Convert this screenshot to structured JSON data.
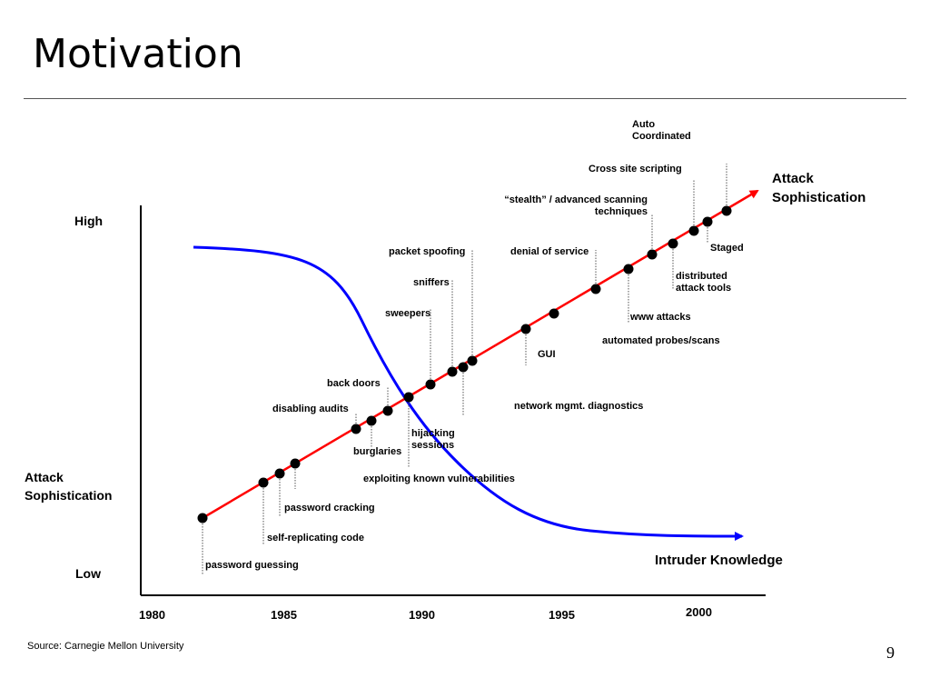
{
  "slide": {
    "title": "Motivation",
    "source": "Source: Carnegie Mellon University",
    "page_number": "9"
  },
  "axis": {
    "high": "High",
    "low": "Low",
    "y_title": [
      "Attack",
      "Sophistication"
    ],
    "years": [
      "1980",
      "1985",
      "1990",
      "1995",
      "2000"
    ]
  },
  "series": {
    "attack": {
      "label": [
        "Attack",
        "Sophistication"
      ],
      "color": "#ff0000"
    },
    "knowledge": {
      "label": "Intruder Knowledge",
      "color": "#0000ff"
    }
  },
  "events": [
    {
      "id": "password-guessing",
      "label": [
        "password guessing"
      ]
    },
    {
      "id": "self-replicating-code",
      "label": [
        "self-replicating code"
      ]
    },
    {
      "id": "password-cracking",
      "label": [
        "password cracking"
      ]
    },
    {
      "id": "exploiting-known-vulnerabilities",
      "label": [
        "exploiting known vulnerabilities"
      ]
    },
    {
      "id": "disabling-audits",
      "label": [
        "disabling audits"
      ]
    },
    {
      "id": "burglaries",
      "label": [
        "burglaries"
      ]
    },
    {
      "id": "back-doors",
      "label": [
        "back doors"
      ]
    },
    {
      "id": "hijacking-sessions",
      "label": [
        "hijacking",
        "sessions"
      ]
    },
    {
      "id": "sweepers",
      "label": [
        "sweepers"
      ]
    },
    {
      "id": "sniffers",
      "label": [
        "sniffers"
      ]
    },
    {
      "id": "network-mgmt-diagnostics",
      "label": [
        "network mgmt. diagnostics"
      ]
    },
    {
      "id": "packet-spoofing",
      "label": [
        "packet spoofing"
      ]
    },
    {
      "id": "gui",
      "label": [
        "GUI"
      ]
    },
    {
      "id": "automated-probes-scans",
      "label": [
        "automated probes/scans"
      ]
    },
    {
      "id": "denial-of-service",
      "label": [
        "denial of service"
      ]
    },
    {
      "id": "www-attacks",
      "label": [
        "www attacks"
      ]
    },
    {
      "id": "stealth-advanced-scanning",
      "label": [
        "“stealth” / advanced scanning",
        "techniques"
      ]
    },
    {
      "id": "distributed-attack-tools",
      "label": [
        "distributed",
        "attack tools"
      ]
    },
    {
      "id": "cross-site-scripting",
      "label": [
        "Cross site scripting"
      ]
    },
    {
      "id": "staged",
      "label": [
        "Staged"
      ]
    },
    {
      "id": "auto-coordinated",
      "label": [
        "Auto",
        "Coordinated"
      ]
    }
  ]
}
